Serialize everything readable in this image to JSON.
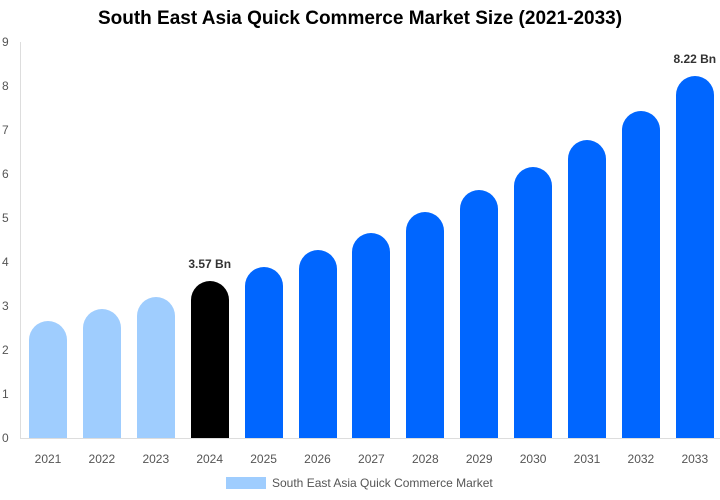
{
  "chart_data": {
    "type": "bar",
    "title": "South East Asia Quick Commerce Market Size (2021-2033)",
    "xlabel": "",
    "ylabel": "",
    "ylim": [
      0,
      9
    ],
    "yticks": [
      0,
      1,
      2,
      3,
      4,
      5,
      6,
      7,
      8,
      9
    ],
    "grid": false,
    "legend_position": "bottom",
    "categories": [
      "2021",
      "2022",
      "2023",
      "2024",
      "2025",
      "2026",
      "2027",
      "2028",
      "2029",
      "2030",
      "2031",
      "2032",
      "2033"
    ],
    "series": [
      {
        "name": "South East Asia Quick Commerce Market",
        "values": [
          2.66,
          2.93,
          3.2,
          3.57,
          3.89,
          4.27,
          4.66,
          5.14,
          5.64,
          6.16,
          6.77,
          7.43,
          8.22
        ]
      }
    ],
    "bar_colors": [
      "#9fcdfe",
      "#9fcdfe",
      "#9fcdfe",
      "#000000",
      "#0066ff",
      "#0066ff",
      "#0066ff",
      "#0066ff",
      "#0066ff",
      "#0066ff",
      "#0066ff",
      "#0066ff",
      "#0066ff"
    ],
    "annotations": [
      {
        "category": "2024",
        "text": "3.57 Bn"
      },
      {
        "category": "2033",
        "text": "8.22 Bn"
      }
    ]
  },
  "legend": {
    "label": "South East Asia Quick Commerce Market",
    "color": "#9fcdfe"
  }
}
